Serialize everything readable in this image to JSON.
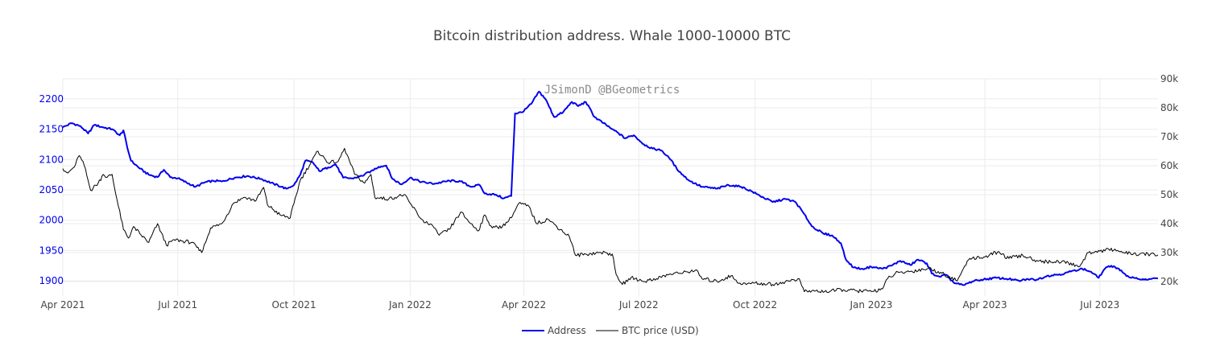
{
  "chart_data": {
    "type": "line",
    "title": "Bitcoin distribution address. Whale 1000-10000 BTC",
    "watermark": "JSimonD @BGeometrics",
    "x_ticks": [
      "Apr 2021",
      "Jul 2021",
      "Oct 2021",
      "Jan 2022",
      "Apr 2022",
      "Jul 2022",
      "Oct 2022",
      "Jan 2023",
      "Apr 2023",
      "Jul 2023"
    ],
    "x_range": [
      "2021-04-01",
      "2023-08-16"
    ],
    "y_left": {
      "ticks": [
        "1900",
        "1950",
        "2000",
        "2050",
        "2100",
        "2150",
        "2200"
      ],
      "range": [
        1875,
        2233
      ],
      "color": "#0000ee"
    },
    "y_right": {
      "ticks": [
        "20k",
        "30k",
        "40k",
        "50k",
        "60k",
        "70k",
        "80k",
        "90k"
      ],
      "range": [
        15000,
        90000
      ]
    },
    "grid": true,
    "legend_position": "bottom-center",
    "series": [
      {
        "name": "Address",
        "color": "#0000ee",
        "axis": "left",
        "points": [
          [
            "2021-04-01",
            2153
          ],
          [
            "2021-04-08",
            2160
          ],
          [
            "2021-04-15",
            2155
          ],
          [
            "2021-04-21",
            2143
          ],
          [
            "2021-04-26",
            2157
          ],
          [
            "2021-05-03",
            2153
          ],
          [
            "2021-05-10",
            2150
          ],
          [
            "2021-05-16",
            2140
          ],
          [
            "2021-05-19",
            2148
          ],
          [
            "2021-05-22",
            2120
          ],
          [
            "2021-05-25",
            2098
          ],
          [
            "2021-06-01",
            2085
          ],
          [
            "2021-06-08",
            2075
          ],
          [
            "2021-06-15",
            2071
          ],
          [
            "2021-06-20",
            2083
          ],
          [
            "2021-06-25",
            2071
          ],
          [
            "2021-07-01",
            2069
          ],
          [
            "2021-07-08",
            2062
          ],
          [
            "2021-07-15",
            2055
          ],
          [
            "2021-07-22",
            2062
          ],
          [
            "2021-07-29",
            2065
          ],
          [
            "2021-08-05",
            2064
          ],
          [
            "2021-08-15",
            2070
          ],
          [
            "2021-08-25",
            2073
          ],
          [
            "2021-09-05",
            2068
          ],
          [
            "2021-09-15",
            2060
          ],
          [
            "2021-09-25",
            2052
          ],
          [
            "2021-10-01",
            2058
          ],
          [
            "2021-10-06",
            2075
          ],
          [
            "2021-10-10",
            2098
          ],
          [
            "2021-10-16",
            2095
          ],
          [
            "2021-10-21",
            2081
          ],
          [
            "2021-10-28",
            2087
          ],
          [
            "2021-11-03",
            2092
          ],
          [
            "2021-11-09",
            2070
          ],
          [
            "2021-11-16",
            2069
          ],
          [
            "2021-11-24",
            2073
          ],
          [
            "2021-12-01",
            2081
          ],
          [
            "2021-12-07",
            2088
          ],
          [
            "2021-12-13",
            2090
          ],
          [
            "2021-12-18",
            2068
          ],
          [
            "2021-12-25",
            2059
          ],
          [
            "2022-01-01",
            2070
          ],
          [
            "2022-01-10",
            2063
          ],
          [
            "2022-01-20",
            2060
          ],
          [
            "2022-02-01",
            2065
          ],
          [
            "2022-02-10",
            2064
          ],
          [
            "2022-02-18",
            2055
          ],
          [
            "2022-02-25",
            2058
          ],
          [
            "2022-03-01",
            2044
          ],
          [
            "2022-03-10",
            2042
          ],
          [
            "2022-03-16",
            2036
          ],
          [
            "2022-03-22",
            2040
          ],
          [
            "2022-03-25",
            2176
          ],
          [
            "2022-03-31",
            2178
          ],
          [
            "2022-04-07",
            2192
          ],
          [
            "2022-04-13",
            2212
          ],
          [
            "2022-04-18",
            2200
          ],
          [
            "2022-04-25",
            2170
          ],
          [
            "2022-05-02",
            2178
          ],
          [
            "2022-05-09",
            2195
          ],
          [
            "2022-05-14",
            2188
          ],
          [
            "2022-05-20",
            2195
          ],
          [
            "2022-05-27",
            2170
          ],
          [
            "2022-06-03",
            2160
          ],
          [
            "2022-06-10",
            2150
          ],
          [
            "2022-06-14",
            2145
          ],
          [
            "2022-06-20",
            2135
          ],
          [
            "2022-06-27",
            2140
          ],
          [
            "2022-07-05",
            2125
          ],
          [
            "2022-07-12",
            2118
          ],
          [
            "2022-07-19",
            2115
          ],
          [
            "2022-07-26",
            2100
          ],
          [
            "2022-08-02",
            2080
          ],
          [
            "2022-08-10",
            2065
          ],
          [
            "2022-08-20",
            2055
          ],
          [
            "2022-09-01",
            2052
          ],
          [
            "2022-09-10",
            2058
          ],
          [
            "2022-09-20",
            2055
          ],
          [
            "2022-09-28",
            2048
          ],
          [
            "2022-10-05",
            2040
          ],
          [
            "2022-10-15",
            2030
          ],
          [
            "2022-10-25",
            2035
          ],
          [
            "2022-11-02",
            2030
          ],
          [
            "2022-11-09",
            2010
          ],
          [
            "2022-11-15",
            1990
          ],
          [
            "2022-11-24",
            1978
          ],
          [
            "2022-12-01",
            1975
          ],
          [
            "2022-12-08",
            1962
          ],
          [
            "2022-12-12",
            1935
          ],
          [
            "2022-12-18",
            1922
          ],
          [
            "2022-12-25",
            1920
          ],
          [
            "2023-01-01",
            1923
          ],
          [
            "2023-01-10",
            1920
          ],
          [
            "2023-01-17",
            1925
          ],
          [
            "2023-01-24",
            1933
          ],
          [
            "2023-02-01",
            1926
          ],
          [
            "2023-02-07",
            1935
          ],
          [
            "2023-02-14",
            1929
          ],
          [
            "2023-02-18",
            1912
          ],
          [
            "2023-02-24",
            1907
          ],
          [
            "2023-03-01",
            1910
          ],
          [
            "2023-03-08",
            1896
          ],
          [
            "2023-03-15",
            1893
          ],
          [
            "2023-03-22",
            1899
          ],
          [
            "2023-03-29",
            1902
          ],
          [
            "2023-04-10",
            1905
          ],
          [
            "2023-04-20",
            1903
          ],
          [
            "2023-04-28",
            1900
          ],
          [
            "2023-05-05",
            1903
          ],
          [
            "2023-05-12",
            1902
          ],
          [
            "2023-05-20",
            1908
          ],
          [
            "2023-05-27",
            1910
          ],
          [
            "2023-06-03",
            1912
          ],
          [
            "2023-06-10",
            1917
          ],
          [
            "2023-06-17",
            1920
          ],
          [
            "2023-06-24",
            1915
          ],
          [
            "2023-06-30",
            1905
          ],
          [
            "2023-07-05",
            1920
          ],
          [
            "2023-07-10",
            1925
          ],
          [
            "2023-07-16",
            1920
          ],
          [
            "2023-07-22",
            1908
          ],
          [
            "2023-07-28",
            1905
          ],
          [
            "2023-08-05",
            1902
          ],
          [
            "2023-08-10",
            1903
          ],
          [
            "2023-08-16",
            1904
          ]
        ]
      },
      {
        "name": "BTC price (USD)",
        "color": "#000000",
        "axis": "right",
        "points": [
          [
            "2021-04-01",
            59000
          ],
          [
            "2021-04-05",
            57500
          ],
          [
            "2021-04-10",
            59500
          ],
          [
            "2021-04-14",
            63500
          ],
          [
            "2021-04-18",
            60000
          ],
          [
            "2021-04-23",
            51500
          ],
          [
            "2021-04-29",
            54000
          ],
          [
            "2021-05-03",
            57000
          ],
          [
            "2021-05-06",
            56000
          ],
          [
            "2021-05-10",
            57000
          ],
          [
            "2021-05-13",
            50000
          ],
          [
            "2021-05-19",
            38000
          ],
          [
            "2021-05-23",
            35000
          ],
          [
            "2021-05-27",
            39000
          ],
          [
            "2021-06-01",
            36500
          ],
          [
            "2021-06-08",
            33500
          ],
          [
            "2021-06-15",
            40000
          ],
          [
            "2021-06-22",
            32500
          ],
          [
            "2021-06-28",
            34500
          ],
          [
            "2021-07-05",
            34000
          ],
          [
            "2021-07-12",
            33500
          ],
          [
            "2021-07-20",
            30000
          ],
          [
            "2021-07-27",
            38500
          ],
          [
            "2021-08-05",
            40000
          ],
          [
            "2021-08-14",
            47000
          ],
          [
            "2021-08-22",
            49000
          ],
          [
            "2021-09-01",
            48000
          ],
          [
            "2021-09-07",
            52500
          ],
          [
            "2021-09-10",
            46500
          ],
          [
            "2021-09-20",
            43000
          ],
          [
            "2021-09-28",
            42000
          ],
          [
            "2021-10-01",
            47000
          ],
          [
            "2021-10-06",
            55000
          ],
          [
            "2021-10-15",
            61500
          ],
          [
            "2021-10-20",
            65000
          ],
          [
            "2021-10-28",
            61000
          ],
          [
            "2021-11-05",
            61500
          ],
          [
            "2021-11-10",
            66000
          ],
          [
            "2021-11-18",
            57000
          ],
          [
            "2021-11-26",
            54000
          ],
          [
            "2021-12-01",
            57000
          ],
          [
            "2021-12-04",
            49000
          ],
          [
            "2021-12-15",
            48500
          ],
          [
            "2021-12-27",
            50000
          ],
          [
            "2022-01-01",
            47000
          ],
          [
            "2022-01-10",
            41500
          ],
          [
            "2022-01-20",
            38500
          ],
          [
            "2022-01-24",
            36000
          ],
          [
            "2022-02-01",
            38000
          ],
          [
            "2022-02-10",
            44000
          ],
          [
            "2022-02-18",
            40000
          ],
          [
            "2022-02-24",
            37500
          ],
          [
            "2022-03-01",
            43000
          ],
          [
            "2022-03-07",
            38500
          ],
          [
            "2022-03-15",
            39000
          ],
          [
            "2022-03-22",
            42000
          ],
          [
            "2022-03-28",
            47000
          ],
          [
            "2022-04-05",
            46000
          ],
          [
            "2022-04-11",
            40000
          ],
          [
            "2022-04-20",
            41500
          ],
          [
            "2022-04-30",
            38000
          ],
          [
            "2022-05-07",
            35500
          ],
          [
            "2022-05-12",
            29000
          ],
          [
            "2022-05-20",
            29500
          ],
          [
            "2022-06-01",
            30000
          ],
          [
            "2022-06-10",
            29500
          ],
          [
            "2022-06-13",
            22500
          ],
          [
            "2022-06-18",
            19000
          ],
          [
            "2022-06-25",
            21500
          ],
          [
            "2022-07-05",
            20000
          ],
          [
            "2022-07-15",
            21000
          ],
          [
            "2022-07-25",
            22500
          ],
          [
            "2022-08-05",
            23000
          ],
          [
            "2022-08-15",
            24000
          ],
          [
            "2022-08-20",
            21000
          ],
          [
            "2022-09-01",
            20000
          ],
          [
            "2022-09-12",
            22000
          ],
          [
            "2022-09-20",
            19000
          ],
          [
            "2022-10-01",
            19500
          ],
          [
            "2022-10-15",
            19000
          ],
          [
            "2022-10-25",
            20000
          ],
          [
            "2022-11-05",
            21000
          ],
          [
            "2022-11-09",
            16500
          ],
          [
            "2022-11-15",
            16800
          ],
          [
            "2022-11-25",
            16500
          ],
          [
            "2022-12-10",
            17200
          ],
          [
            "2022-12-20",
            16800
          ],
          [
            "2023-01-01",
            16600
          ],
          [
            "2023-01-10",
            17500
          ],
          [
            "2023-01-14",
            21000
          ],
          [
            "2023-01-20",
            22800
          ],
          [
            "2023-02-01",
            23500
          ],
          [
            "2023-02-15",
            24500
          ],
          [
            "2023-02-25",
            23200
          ],
          [
            "2023-03-10",
            20200
          ],
          [
            "2023-03-15",
            24500
          ],
          [
            "2023-03-20",
            28000
          ],
          [
            "2023-04-01",
            28500
          ],
          [
            "2023-04-11",
            30200
          ],
          [
            "2023-04-20",
            28000
          ],
          [
            "2023-05-01",
            29000
          ],
          [
            "2023-05-10",
            27500
          ],
          [
            "2023-05-20",
            26800
          ],
          [
            "2023-06-01",
            27000
          ],
          [
            "2023-06-15",
            25200
          ],
          [
            "2023-06-22",
            30000
          ],
          [
            "2023-07-01",
            30500
          ],
          [
            "2023-07-13",
            31200
          ],
          [
            "2023-07-20",
            30000
          ],
          [
            "2023-08-01",
            29300
          ],
          [
            "2023-08-10",
            29500
          ],
          [
            "2023-08-16",
            29200
          ]
        ]
      }
    ]
  }
}
